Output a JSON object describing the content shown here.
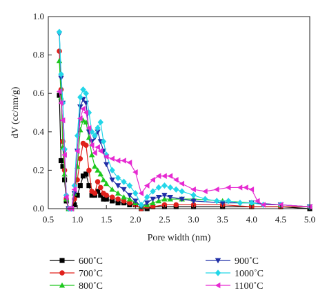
{
  "chart_data": {
    "type": "line",
    "title": "",
    "xlabel": "Pore width (nm)",
    "ylabel": "dV (cc/nm/g)",
    "xlim": [
      0.5,
      5.0
    ],
    "ylim": [
      0.0,
      1.0
    ],
    "xticks": [
      "0.5",
      "1.0",
      "1.5",
      "2.0",
      "2.5",
      "3.0",
      "3.5",
      "4.0",
      "4.5",
      "5.0"
    ],
    "yticks": [
      "0.0",
      "0.2",
      "0.4",
      "0.6",
      "0.8",
      "1.0"
    ],
    "grid": false,
    "legend_position": "bottom",
    "series": [
      {
        "name": "600˚C",
        "color": "#000000",
        "marker": "square",
        "x": [
          0.69,
          0.72,
          0.75,
          0.78,
          0.81,
          0.85,
          0.9,
          0.95,
          1.0,
          1.05,
          1.1,
          1.15,
          1.2,
          1.25,
          1.3,
          1.35,
          1.4,
          1.45,
          1.5,
          1.6,
          1.7,
          1.8,
          1.9,
          2.0,
          2.1,
          2.2,
          2.3,
          2.5,
          2.7,
          3.0,
          3.5,
          4.0,
          4.5,
          5.0
        ],
        "y": [
          0.59,
          0.25,
          0.22,
          0.15,
          0.04,
          0.0,
          0.0,
          0.02,
          0.07,
          0.12,
          0.17,
          0.18,
          0.12,
          0.07,
          0.07,
          0.09,
          0.07,
          0.05,
          0.05,
          0.04,
          0.03,
          0.03,
          0.02,
          0.02,
          0.0,
          0.0,
          0.01,
          0.01,
          0.01,
          0.01,
          0.01,
          0.01,
          0.01,
          0.0
        ]
      },
      {
        "name": "700˚C",
        "color": "#e0201b",
        "marker": "circle",
        "x": [
          0.69,
          0.72,
          0.75,
          0.78,
          0.81,
          0.85,
          0.9,
          0.95,
          1.0,
          1.05,
          1.1,
          1.15,
          1.2,
          1.25,
          1.3,
          1.35,
          1.4,
          1.45,
          1.5,
          1.6,
          1.7,
          1.8,
          1.9,
          2.0,
          2.1,
          2.2,
          2.3,
          2.5,
          2.7,
          3.0,
          3.5,
          4.0,
          4.5,
          5.0
        ],
        "y": [
          0.82,
          0.62,
          0.35,
          0.2,
          0.05,
          0.0,
          0.0,
          0.05,
          0.15,
          0.26,
          0.34,
          0.33,
          0.2,
          0.09,
          0.08,
          0.14,
          0.11,
          0.08,
          0.07,
          0.06,
          0.05,
          0.04,
          0.03,
          0.02,
          0.0,
          0.01,
          0.01,
          0.02,
          0.02,
          0.02,
          0.02,
          0.01,
          0.01,
          0.01
        ]
      },
      {
        "name": "800˚C",
        "color": "#1ec81e",
        "marker": "triangle-up",
        "x": [
          0.69,
          0.72,
          0.75,
          0.78,
          0.81,
          0.85,
          0.9,
          0.95,
          1.0,
          1.05,
          1.1,
          1.15,
          1.2,
          1.25,
          1.3,
          1.35,
          1.4,
          1.45,
          1.5,
          1.6,
          1.7,
          1.8,
          1.9,
          2.0,
          2.1,
          2.2,
          2.3,
          2.4,
          2.5,
          2.6,
          2.8,
          3.0,
          3.5,
          4.0,
          4.5,
          5.0
        ],
        "y": [
          0.77,
          0.58,
          0.32,
          0.18,
          0.05,
          0.0,
          0.0,
          0.08,
          0.22,
          0.41,
          0.46,
          0.45,
          0.37,
          0.28,
          0.22,
          0.2,
          0.18,
          0.15,
          0.13,
          0.1,
          0.08,
          0.06,
          0.05,
          0.03,
          0.01,
          0.02,
          0.03,
          0.04,
          0.05,
          0.05,
          0.05,
          0.05,
          0.04,
          0.03,
          0.02,
          0.01
        ]
      },
      {
        "name": "900˚C",
        "color": "#1f2ea6",
        "marker": "triangle-down",
        "x": [
          0.69,
          0.72,
          0.75,
          0.78,
          0.81,
          0.85,
          0.9,
          0.95,
          1.0,
          1.05,
          1.1,
          1.15,
          1.2,
          1.25,
          1.3,
          1.35,
          1.4,
          1.45,
          1.5,
          1.6,
          1.7,
          1.8,
          1.9,
          2.0,
          2.1,
          2.2,
          2.3,
          2.4,
          2.5,
          2.6,
          2.8,
          3.0,
          3.5,
          4.0,
          4.5,
          5.0
        ],
        "y": [
          0.91,
          0.68,
          0.55,
          0.3,
          0.06,
          0.0,
          0.0,
          0.08,
          0.3,
          0.53,
          0.57,
          0.55,
          0.4,
          0.35,
          0.37,
          0.4,
          0.35,
          0.3,
          0.23,
          0.15,
          0.12,
          0.1,
          0.07,
          0.04,
          0.01,
          0.03,
          0.05,
          0.06,
          0.07,
          0.06,
          0.05,
          0.04,
          0.03,
          0.03,
          0.02,
          0.01
        ]
      },
      {
        "name": "1000˚C",
        "color": "#22d6e8",
        "marker": "diamond",
        "x": [
          0.69,
          0.72,
          0.75,
          0.78,
          0.81,
          0.85,
          0.9,
          0.95,
          1.0,
          1.05,
          1.1,
          1.15,
          1.2,
          1.25,
          1.3,
          1.35,
          1.4,
          1.45,
          1.5,
          1.6,
          1.7,
          1.8,
          1.9,
          2.0,
          2.1,
          2.2,
          2.3,
          2.4,
          2.5,
          2.6,
          2.7,
          2.8,
          3.0,
          3.2,
          3.4,
          3.6,
          3.8,
          4.0,
          4.2,
          4.5,
          5.0
        ],
        "y": [
          0.92,
          0.7,
          0.55,
          0.31,
          0.07,
          0.0,
          0.0,
          0.12,
          0.38,
          0.58,
          0.62,
          0.6,
          0.5,
          0.4,
          0.38,
          0.42,
          0.45,
          0.35,
          0.28,
          0.2,
          0.16,
          0.14,
          0.12,
          0.08,
          0.02,
          0.06,
          0.09,
          0.11,
          0.12,
          0.11,
          0.1,
          0.09,
          0.07,
          0.05,
          0.04,
          0.04,
          0.03,
          0.03,
          0.02,
          0.02,
          0.01
        ]
      },
      {
        "name": "1100˚C",
        "color": "#e62ad1",
        "marker": "triangle-left",
        "x": [
          0.69,
          0.72,
          0.75,
          0.78,
          0.81,
          0.85,
          0.9,
          0.95,
          1.0,
          1.05,
          1.1,
          1.15,
          1.2,
          1.25,
          1.3,
          1.35,
          1.4,
          1.5,
          1.6,
          1.7,
          1.8,
          1.9,
          2.0,
          2.1,
          2.2,
          2.3,
          2.4,
          2.5,
          2.6,
          2.7,
          2.8,
          3.0,
          3.2,
          3.4,
          3.6,
          3.8,
          3.9,
          4.0,
          4.1,
          4.2,
          4.5,
          5.0
        ],
        "y": [
          0.61,
          0.55,
          0.46,
          0.28,
          0.06,
          0.0,
          0.0,
          0.1,
          0.3,
          0.47,
          0.52,
          0.5,
          0.42,
          0.33,
          0.29,
          0.32,
          0.3,
          0.27,
          0.26,
          0.25,
          0.25,
          0.24,
          0.19,
          0.08,
          0.12,
          0.15,
          0.17,
          0.17,
          0.17,
          0.15,
          0.13,
          0.1,
          0.09,
          0.1,
          0.11,
          0.11,
          0.11,
          0.1,
          0.04,
          0.02,
          0.02,
          0.01
        ]
      }
    ]
  }
}
